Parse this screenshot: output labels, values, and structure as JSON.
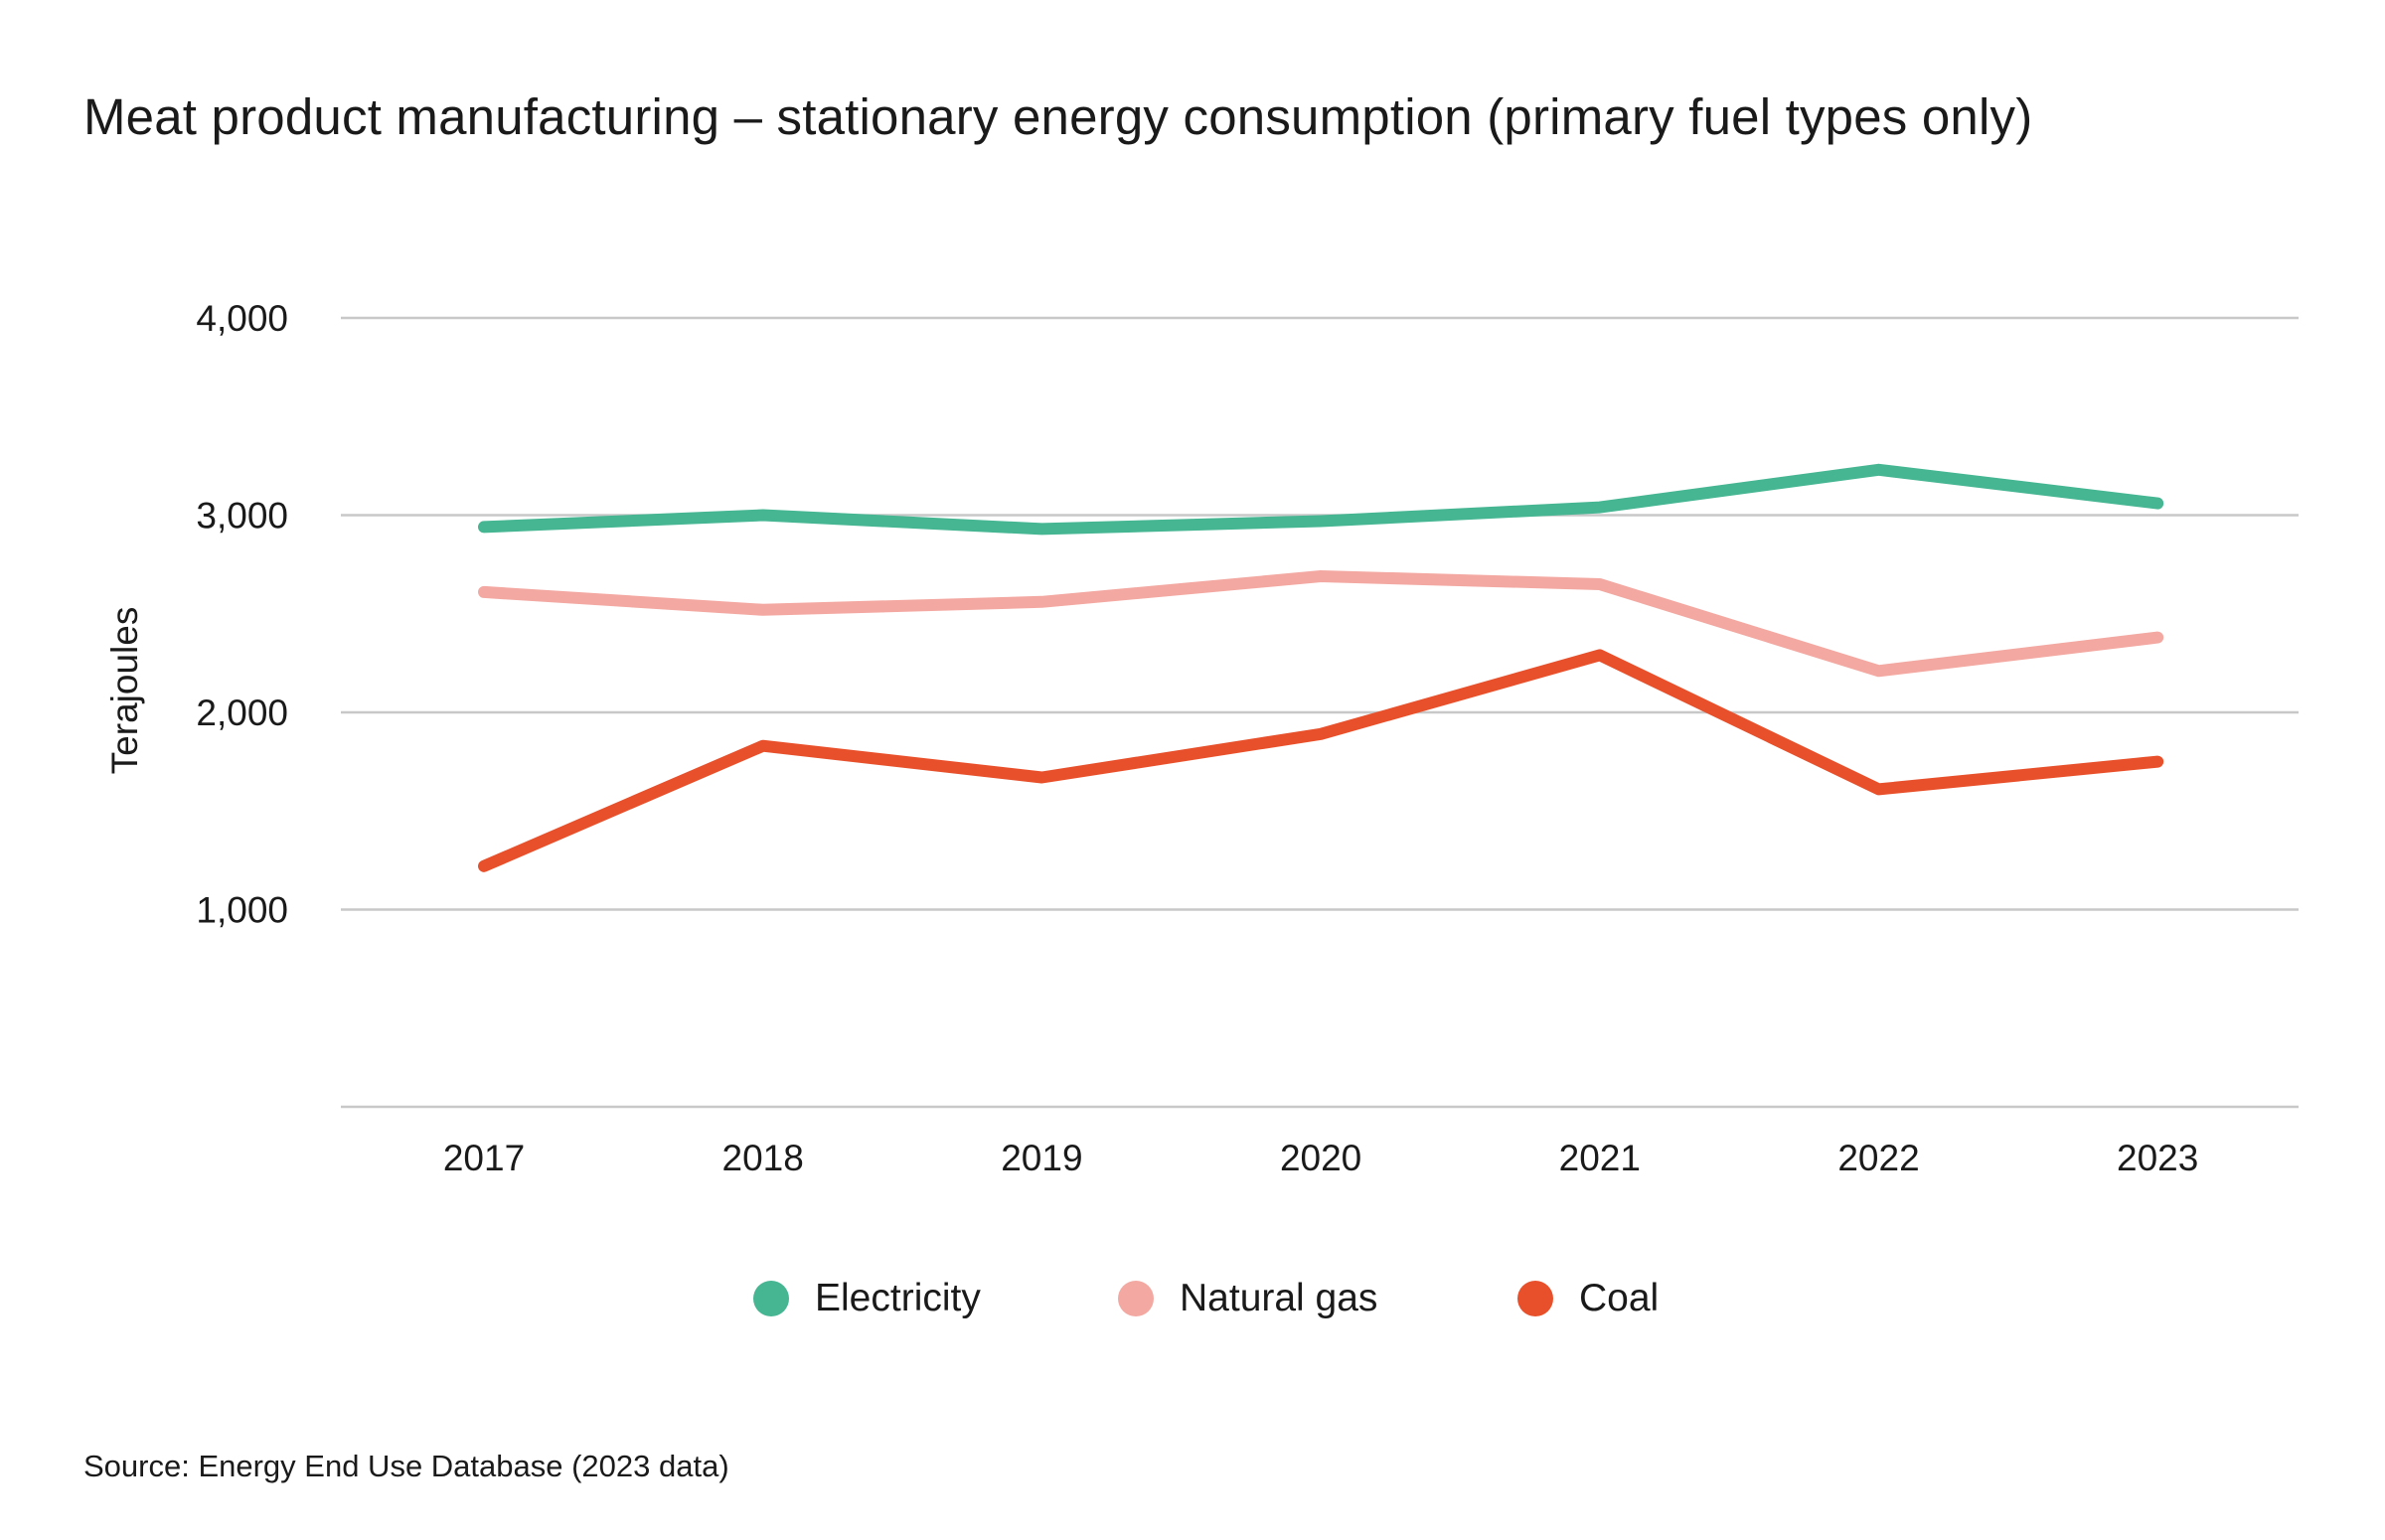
{
  "title": "Meat product manufacturing – stationary energy consumption (primary fuel types only)",
  "source": "Source: Energy End Use Database (2023 data)",
  "colors": {
    "electricity": "#45b592",
    "natural_gas": "#f3a8a1",
    "coal": "#e8502b",
    "grid": "#c8c8c8",
    "text": "#1a1a1a"
  },
  "legend": [
    {
      "name": "Electricity",
      "color": "#45b592"
    },
    {
      "name": "Natural gas",
      "color": "#f3a8a1"
    },
    {
      "name": "Coal",
      "color": "#e8502b"
    }
  ],
  "chart_data": {
    "type": "line",
    "title": "Meat product manufacturing – stationary energy consumption (primary fuel types only)",
    "xlabel": "",
    "ylabel": "Terajoules",
    "x": [
      "2017",
      "2018",
      "2019",
      "2020",
      "2021",
      "2022",
      "2023"
    ],
    "y_ticks": [
      "1,000",
      "2,000",
      "3,000",
      "4,000"
    ],
    "y_tick_values": [
      1000,
      2000,
      3000,
      4000
    ],
    "ylim": [
      0,
      4000
    ],
    "grid": "horizontal",
    "legend_position": "bottom",
    "series": [
      {
        "name": "Electricity",
        "color": "#45b592",
        "values": [
          2940,
          3000,
          2930,
          2970,
          3040,
          3230,
          3060
        ]
      },
      {
        "name": "Natural gas",
        "color": "#f3a8a1",
        "values": [
          2610,
          2520,
          2560,
          2690,
          2650,
          2210,
          2380
        ]
      },
      {
        "name": "Coal",
        "color": "#e8502b",
        "values": [
          1220,
          1830,
          1670,
          1890,
          2290,
          1610,
          1750
        ]
      }
    ]
  }
}
